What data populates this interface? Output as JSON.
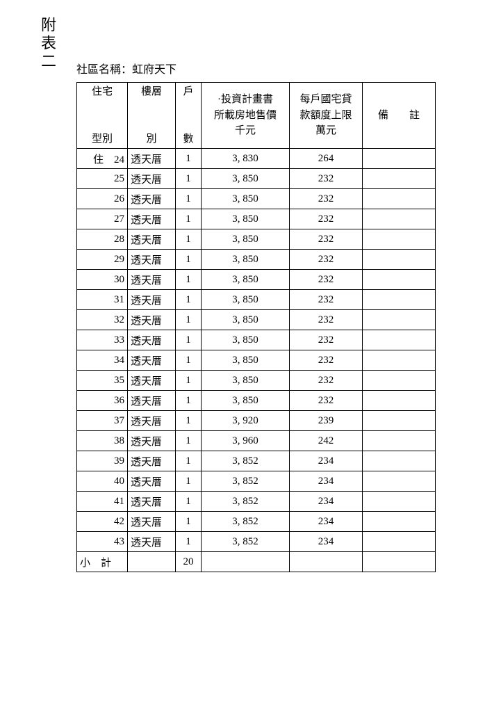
{
  "appendix_label": "附表二",
  "community_label": "社區名稱：",
  "community_name": "虹府天下",
  "columns": {
    "type": "住宅\n\n型別",
    "floor": "樓層\n\n別",
    "units": "戶\n\n數",
    "price": "·投資計畫書\n所載房地售價\n千元",
    "loan": "每戶國宅貸\n款額度上限\n萬元",
    "note": "備　　註"
  },
  "rows": [
    {
      "type": "住　24",
      "floor": "透天厝",
      "units": "1",
      "price": "3, 830",
      "loan": "264",
      "note": ""
    },
    {
      "type": "25",
      "floor": "透天厝",
      "units": "1",
      "price": "3, 850",
      "loan": "232",
      "note": ""
    },
    {
      "type": "26",
      "floor": "透天厝",
      "units": "1",
      "price": "3, 850",
      "loan": "232",
      "note": ""
    },
    {
      "type": "27",
      "floor": "透天厝",
      "units": "1",
      "price": "3, 850",
      "loan": "232",
      "note": ""
    },
    {
      "type": "28",
      "floor": "透天厝",
      "units": "1",
      "price": "3, 850",
      "loan": "232",
      "note": ""
    },
    {
      "type": "29",
      "floor": "透天厝",
      "units": "1",
      "price": "3, 850",
      "loan": "232",
      "note": ""
    },
    {
      "type": "30",
      "floor": "透天厝",
      "units": "1",
      "price": "3, 850",
      "loan": "232",
      "note": ""
    },
    {
      "type": "31",
      "floor": "透天厝",
      "units": "1",
      "price": "3, 850",
      "loan": "232",
      "note": ""
    },
    {
      "type": "32",
      "floor": "透天厝",
      "units": "1",
      "price": "3, 850",
      "loan": "232",
      "note": ""
    },
    {
      "type": "33",
      "floor": "透天厝",
      "units": "1",
      "price": "3, 850",
      "loan": "232",
      "note": ""
    },
    {
      "type": "34",
      "floor": "透天厝",
      "units": "1",
      "price": "3, 850",
      "loan": "232",
      "note": ""
    },
    {
      "type": "35",
      "floor": "透天厝",
      "units": "1",
      "price": "3, 850",
      "loan": "232",
      "note": ""
    },
    {
      "type": "36",
      "floor": "透天厝",
      "units": "1",
      "price": "3, 850",
      "loan": "232",
      "note": ""
    },
    {
      "type": "37",
      "floor": "透天厝",
      "units": "1",
      "price": "3, 920",
      "loan": "239",
      "note": ""
    },
    {
      "type": "38",
      "floor": "透天厝",
      "units": "1",
      "price": "3, 960",
      "loan": "242",
      "note": ""
    },
    {
      "type": "39",
      "floor": "透天厝",
      "units": "1",
      "price": "3, 852",
      "loan": "234",
      "note": ""
    },
    {
      "type": "40",
      "floor": "透天厝",
      "units": "1",
      "price": "3, 852",
      "loan": "234",
      "note": ""
    },
    {
      "type": "41",
      "floor": "透天厝",
      "units": "1",
      "price": "3, 852",
      "loan": "234",
      "note": ""
    },
    {
      "type": "42",
      "floor": "透天厝",
      "units": "1",
      "price": "3, 852",
      "loan": "234",
      "note": ""
    },
    {
      "type": "43",
      "floor": "透天厝",
      "units": "1",
      "price": "3, 852",
      "loan": "234",
      "note": ""
    }
  ],
  "subtotal": {
    "label": "小　計",
    "floor": "",
    "units": "20",
    "price": "",
    "loan": "",
    "note": ""
  }
}
